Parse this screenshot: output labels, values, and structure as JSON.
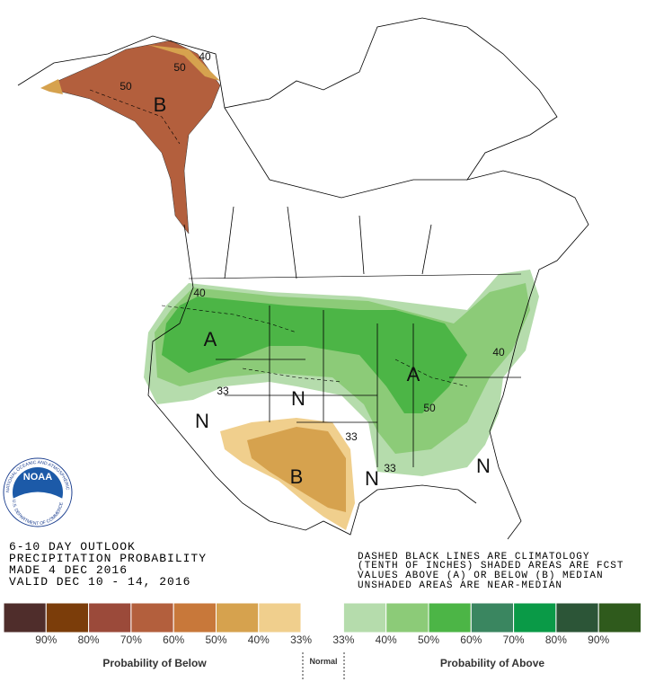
{
  "logo": {
    "name": "NOAA",
    "ring_top": "NATIONAL OCEANIC AND ATMOSPHERIC ADMINISTRATION",
    "ring_bottom": "U.S. DEPARTMENT OF COMMERCE"
  },
  "header": {
    "lines": [
      "6-10 DAY OUTLOOK",
      "PRECIPITATION PROBABILITY",
      "MADE  4 DEC 2016",
      "VALID  DEC 10 - 14, 2016"
    ]
  },
  "notes": {
    "lines": [
      "DASHED BLACK LINES ARE CLIMATOLOGY",
      "(TENTH OF INCHES) SHADED AREAS ARE FCST",
      "VALUES ABOVE (A) OR BELOW (B) MEDIAN",
      "UNSHADED AREAS ARE NEAR-MEDIAN"
    ]
  },
  "map": {
    "labels": [
      "B",
      "40",
      "50",
      "50",
      "A",
      "40",
      "A",
      "50",
      "40",
      "N",
      "33",
      "N",
      "33",
      "B",
      "N",
      "33",
      "N"
    ]
  },
  "legend": {
    "colors": [
      "#4f2d2b",
      "#7b3d0a",
      "#9b4a3a",
      "#b35f3d",
      "#c8783a",
      "#d6a24e",
      "#f0cf8d",
      "#ffffff",
      "#b5dcac",
      "#8ccb78",
      "#4cb546",
      "#3a8660",
      "#0a9a47",
      "#2c5537",
      "#2f5a1c"
    ],
    "labels": [
      "90%",
      "80%",
      "70%",
      "60%",
      "50%",
      "40%",
      "33%",
      "33%",
      "40%",
      "50%",
      "60%",
      "70%",
      "80%",
      "90%"
    ],
    "below": "Probability of Below",
    "normal": "Normal",
    "above": "Probability of Above"
  }
}
